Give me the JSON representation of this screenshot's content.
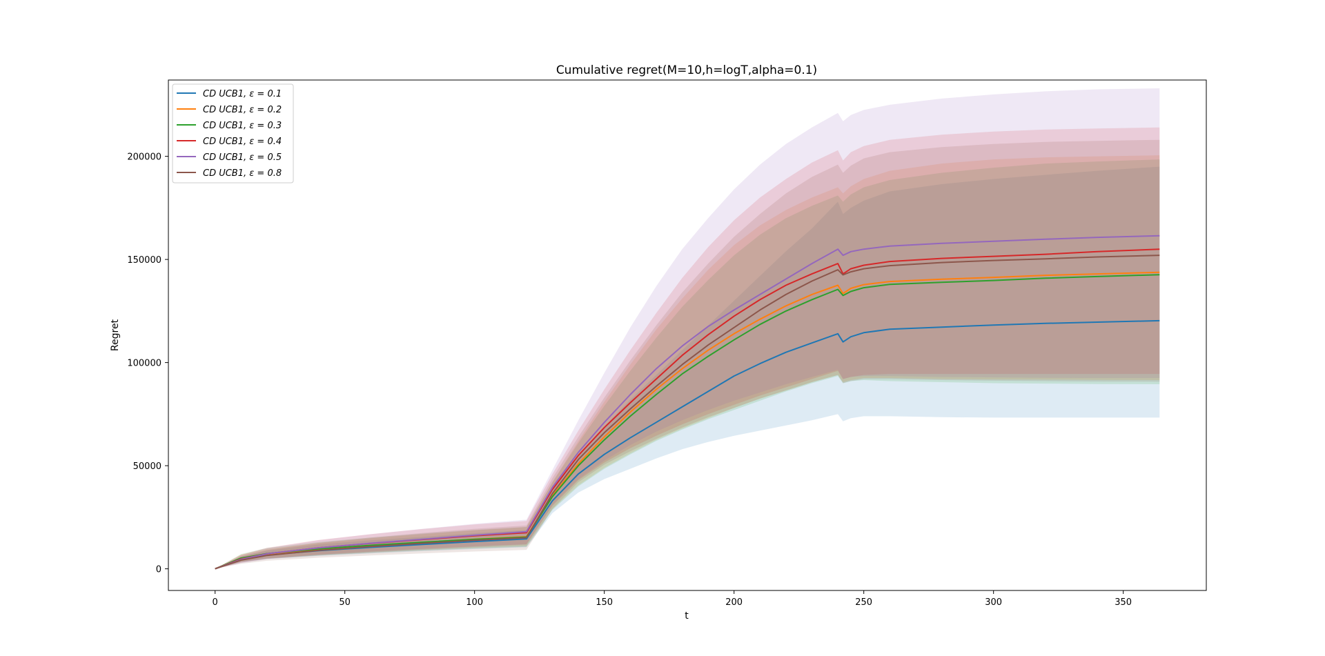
{
  "chart_data": {
    "type": "line",
    "title": "Cumulative regret(M=10,h=logT,alpha=0.1)",
    "xlabel": "t",
    "ylabel": "Regret",
    "xlim": [
      -18,
      382
    ],
    "ylim": [
      -10500,
      237000
    ],
    "xticks": [
      0,
      50,
      100,
      150,
      200,
      250,
      300,
      350
    ],
    "yticks": [
      0,
      50000,
      100000,
      150000,
      200000
    ],
    "xtick_labels": [
      "0",
      "50",
      "100",
      "150",
      "200",
      "250",
      "300",
      "350"
    ],
    "ytick_labels": [
      "0",
      "50000",
      "100000",
      "150000",
      "200000"
    ],
    "legend_position": "upper left",
    "x": [
      0,
      10,
      20,
      40,
      60,
      80,
      100,
      120,
      130,
      140,
      150,
      160,
      170,
      180,
      190,
      200,
      210,
      220,
      230,
      240,
      242,
      245,
      250,
      260,
      280,
      300,
      320,
      340,
      364
    ],
    "series": [
      {
        "name": "CD UCB1, ε = 0.1",
        "legend_label": "CD UCB1,  ε = 0.1",
        "color": "#1f77b4",
        "values": [
          0,
          4600,
          6700,
          8800,
          10400,
          11800,
          13200,
          14500,
          33000,
          46000,
          55500,
          63500,
          71000,
          78500,
          86000,
          93500,
          99500,
          105000,
          109500,
          114000,
          110000,
          112500,
          114500,
          116200,
          117200,
          118200,
          119000,
          119600,
          120300
        ],
        "upper": [
          0,
          6000,
          8800,
          11800,
          13800,
          15500,
          17300,
          18800,
          38000,
          55000,
          69000,
          82000,
          94000,
          106000,
          118000,
          130000,
          142000,
          154000,
          165000,
          178000,
          172000,
          175000,
          178500,
          183000,
          186500,
          189000,
          191000,
          193000,
          195000
        ],
        "lower": [
          0,
          3200,
          4800,
          6300,
          7500,
          8600,
          9600,
          10500,
          27000,
          37000,
          43500,
          48500,
          53500,
          58000,
          61500,
          64500,
          67000,
          69500,
          72000,
          75000,
          71500,
          73000,
          74000,
          74000,
          73500,
          73300,
          73300,
          73300,
          73300
        ]
      },
      {
        "name": "CD UCB1, ε = 0.2",
        "legend_label": "CD UCB1,  ε = 0.2",
        "color": "#ff7f0e",
        "values": [
          0,
          5000,
          7200,
          9500,
          11200,
          12800,
          14400,
          15600,
          35500,
          51000,
          64000,
          76000,
          87000,
          97000,
          106000,
          114000,
          121000,
          127500,
          133000,
          137500,
          133500,
          136000,
          137800,
          139300,
          140400,
          141300,
          142300,
          143000,
          143800
        ],
        "upper": [
          0,
          6800,
          9600,
          12500,
          14800,
          16800,
          18700,
          20200,
          42000,
          62000,
          81000,
          99000,
          116000,
          131000,
          145000,
          157000,
          166500,
          174000,
          180000,
          185000,
          182000,
          185500,
          189000,
          193000,
          196500,
          198500,
          199500,
          200000,
          200500
        ],
        "lower": [
          0,
          3400,
          5100,
          6700,
          8000,
          9200,
          10300,
          11200,
          29000,
          40500,
          49000,
          56000,
          62500,
          68000,
          73000,
          78000,
          82500,
          86500,
          90500,
          94000,
          90500,
          91500,
          92500,
          92500,
          92000,
          91800,
          91700,
          91600,
          91500
        ]
      },
      {
        "name": "CD UCB1, ε = 0.3",
        "legend_label": "CD UCB1,  ε = 0.3",
        "color": "#2ca02c",
        "values": [
          0,
          5200,
          7400,
          9700,
          11400,
          12900,
          14300,
          15400,
          35000,
          50000,
          62500,
          74000,
          84500,
          94500,
          103000,
          111000,
          118500,
          125000,
          130500,
          135500,
          132500,
          134500,
          136300,
          137900,
          138900,
          139800,
          140900,
          141700,
          142600
        ],
        "upper": [
          0,
          7200,
          10100,
          13000,
          15200,
          17100,
          18800,
          20300,
          42000,
          61000,
          79000,
          96000,
          112000,
          127000,
          140000,
          152000,
          162000,
          170000,
          176000,
          181000,
          178000,
          181500,
          185000,
          188500,
          192000,
          194500,
          196500,
          197500,
          198500
        ],
        "lower": [
          0,
          3400,
          5000,
          6500,
          7800,
          8900,
          9900,
          10700,
          28500,
          40000,
          48500,
          55500,
          62000,
          67500,
          72500,
          77000,
          81500,
          86000,
          90000,
          93500,
          90000,
          91000,
          91500,
          91000,
          90500,
          90000,
          89800,
          89600,
          89500
        ]
      },
      {
        "name": "CD UCB1, ε = 0.4",
        "legend_label": "CD UCB1,  ε = 0.4",
        "color": "#d62728",
        "values": [
          0,
          4800,
          7300,
          10200,
          12300,
          14200,
          16000,
          17500,
          38500,
          55000,
          68500,
          80500,
          92000,
          103500,
          113500,
          122500,
          130500,
          137500,
          143000,
          148000,
          143000,
          145500,
          147200,
          149000,
          150500,
          151500,
          152500,
          153800,
          155000
        ],
        "upper": [
          0,
          6800,
          10200,
          14000,
          16800,
          19300,
          21500,
          23200,
          46000,
          67000,
          87000,
          106000,
          124000,
          141000,
          156000,
          169000,
          180000,
          189000,
          197000,
          203000,
          198000,
          202000,
          205000,
          208000,
          210500,
          212000,
          213000,
          213500,
          214000
        ],
        "lower": [
          0,
          3000,
          4900,
          6900,
          8400,
          9700,
          10900,
          11900,
          30500,
          43000,
          51500,
          58500,
          64500,
          70000,
          75000,
          79500,
          84000,
          88000,
          92000,
          96000,
          92000,
          93000,
          94000,
          94500,
          94500,
          94500,
          94500,
          94500,
          94500
        ]
      },
      {
        "name": "CD UCB1, ε = 0.5",
        "legend_label": "CD UCB1,  ε = 0.5",
        "color": "#9467bd",
        "values": [
          0,
          4600,
          7300,
          10200,
          12400,
          14400,
          16300,
          18000,
          39500,
          56500,
          71000,
          84500,
          97000,
          108000,
          117500,
          125500,
          133000,
          140500,
          148000,
          155000,
          152000,
          153800,
          155000,
          156500,
          157800,
          158800,
          159800,
          160700,
          161500
        ],
        "upper": [
          0,
          6600,
          10000,
          13900,
          16800,
          19400,
          21800,
          23800,
          48000,
          72000,
          95000,
          117000,
          137000,
          155000,
          170000,
          184000,
          196000,
          206000,
          214000,
          221000,
          217000,
          220000,
          222500,
          225000,
          228000,
          230000,
          231500,
          232500,
          233000
        ],
        "lower": [
          0,
          2800,
          4700,
          6600,
          8000,
          9300,
          10600,
          11800,
          31000,
          43500,
          52500,
          60000,
          66500,
          72000,
          77000,
          81500,
          85500,
          89500,
          93000,
          96500,
          92000,
          93000,
          93500,
          93500,
          93000,
          92800,
          92600,
          92500,
          92500
        ]
      },
      {
        "name": "CD UCB1, ε = 0.8",
        "legend_label": "CD UCB1,  ε = 0.8",
        "color": "#8c564b",
        "values": [
          0,
          4200,
          6500,
          9000,
          10800,
          12400,
          13800,
          15100,
          36500,
          53000,
          66000,
          77500,
          88500,
          99000,
          108500,
          117000,
          125500,
          133000,
          139500,
          145000,
          142500,
          144000,
          145500,
          147000,
          148500,
          149500,
          150300,
          151200,
          152000
        ],
        "upper": [
          0,
          6000,
          9100,
          12600,
          15200,
          17400,
          19400,
          21000,
          44000,
          64000,
          83000,
          101000,
          118000,
          134000,
          148000,
          161000,
          172000,
          182000,
          190000,
          196000,
          192000,
          195500,
          199000,
          202000,
          204500,
          206000,
          207000,
          207500,
          208000
        ],
        "lower": [
          0,
          2400,
          3900,
          5400,
          6500,
          7500,
          8400,
          9200,
          29000,
          42000,
          50500,
          57000,
          63000,
          68500,
          73500,
          78000,
          82500,
          86500,
          90500,
          94000,
          90000,
          91000,
          92000,
          92000,
          91500,
          91200,
          91000,
          90800,
          90700
        ]
      }
    ]
  }
}
